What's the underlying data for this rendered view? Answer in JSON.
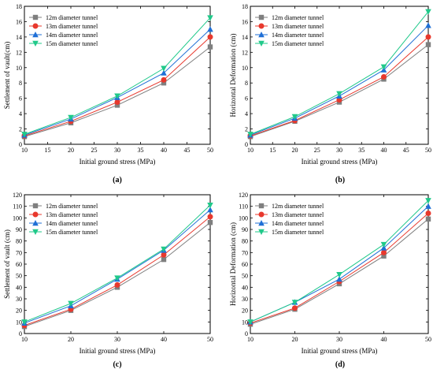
{
  "chart_data": [
    {
      "type": "line",
      "panel_label": "(a)",
      "x": [
        10,
        20,
        30,
        40,
        50
      ],
      "xlabel": "Initial ground stress (MPa)",
      "ylabel": "Settlement of vault(cm)",
      "xlim": [
        10,
        50
      ],
      "ylim": [
        0,
        18
      ],
      "xticks": [
        10,
        15,
        20,
        25,
        30,
        35,
        40,
        45,
        50
      ],
      "yticks": [
        0,
        2,
        4,
        6,
        8,
        10,
        12,
        14,
        16,
        18
      ],
      "grid": false,
      "legend_position": "top-left",
      "series": [
        {
          "name": "12m diameter tunnel",
          "color": "#7f7f7f",
          "marker": "square",
          "values": [
            1.0,
            2.8,
            5.1,
            8.0,
            12.7
          ]
        },
        {
          "name": "13m diameter tunnel",
          "color": "#e8382d",
          "marker": "circle",
          "values": [
            1.1,
            3.0,
            5.5,
            8.4,
            14.0
          ]
        },
        {
          "name": "14m diameter tunnel",
          "color": "#1f6fd6",
          "marker": "triangle-up",
          "values": [
            1.2,
            3.3,
            6.1,
            9.3,
            15.0
          ]
        },
        {
          "name": "15m diameter tunnel",
          "color": "#20c98a",
          "marker": "triangle-down",
          "values": [
            1.3,
            3.5,
            6.3,
            9.9,
            16.5
          ]
        }
      ]
    },
    {
      "type": "line",
      "panel_label": "(b)",
      "x": [
        10,
        20,
        30,
        40,
        50
      ],
      "xlabel": "Initial ground stress (MPa)",
      "ylabel": "Horizontal Deformation (cm)",
      "xlim": [
        10,
        50
      ],
      "ylim": [
        0,
        18
      ],
      "xticks": [
        10,
        15,
        20,
        25,
        30,
        35,
        40,
        45,
        50
      ],
      "yticks": [
        0,
        2,
        4,
        6,
        8,
        10,
        12,
        14,
        16,
        18
      ],
      "grid": false,
      "legend_position": "top-left",
      "series": [
        {
          "name": "12m diameter tunnel",
          "color": "#7f7f7f",
          "marker": "square",
          "values": [
            1.0,
            3.0,
            5.5,
            8.5,
            13.0
          ]
        },
        {
          "name": "13m diameter tunnel",
          "color": "#e8382d",
          "marker": "circle",
          "values": [
            1.1,
            3.1,
            5.8,
            8.8,
            14.0
          ]
        },
        {
          "name": "14m diameter tunnel",
          "color": "#1f6fd6",
          "marker": "triangle-up",
          "values": [
            1.2,
            3.4,
            6.3,
            9.7,
            15.5
          ]
        },
        {
          "name": "15m diameter tunnel",
          "color": "#20c98a",
          "marker": "triangle-down",
          "values": [
            1.3,
            3.6,
            6.6,
            10.1,
            17.3
          ]
        }
      ]
    },
    {
      "type": "line",
      "panel_label": "(c)",
      "x": [
        10,
        20,
        30,
        40,
        50
      ],
      "xlabel": "Initial ground stress (MPa)",
      "ylabel": "Settlement of vault (cm)",
      "xlim": [
        10,
        50
      ],
      "ylim": [
        0,
        120
      ],
      "xticks": [
        10,
        20,
        30,
        40,
        50
      ],
      "yticks": [
        0,
        10,
        20,
        30,
        40,
        50,
        60,
        70,
        80,
        90,
        100,
        110,
        120
      ],
      "grid": false,
      "legend_position": "top-left",
      "series": [
        {
          "name": "12m diameter tunnel",
          "color": "#7f7f7f",
          "marker": "square",
          "values": [
            6,
            20,
            40,
            64,
            96
          ]
        },
        {
          "name": "13m diameter tunnel",
          "color": "#e8382d",
          "marker": "circle",
          "values": [
            7,
            21,
            42,
            68,
            101
          ]
        },
        {
          "name": "14m diameter tunnel",
          "color": "#1f6fd6",
          "marker": "triangle-up",
          "values": [
            9,
            24,
            47,
            72,
            107
          ]
        },
        {
          "name": "15m diameter tunnel",
          "color": "#20c98a",
          "marker": "triangle-down",
          "values": [
            10,
            26,
            48,
            73,
            111
          ]
        }
      ]
    },
    {
      "type": "line",
      "panel_label": "(d)",
      "x": [
        10,
        20,
        30,
        40,
        50
      ],
      "xlabel": "Initial ground stress (MPa)",
      "ylabel": "Horizontal Deformation (cm)",
      "xlim": [
        10,
        50
      ],
      "ylim": [
        0,
        120
      ],
      "xticks": [
        10,
        20,
        30,
        40,
        50
      ],
      "yticks": [
        0,
        10,
        20,
        30,
        40,
        50,
        60,
        70,
        80,
        90,
        100,
        110,
        120
      ],
      "grid": false,
      "legend_position": "top-left",
      "series": [
        {
          "name": "12m diameter tunnel",
          "color": "#7f7f7f",
          "marker": "square",
          "values": [
            8,
            21,
            43,
            67,
            99
          ]
        },
        {
          "name": "13m diameter tunnel",
          "color": "#e8382d",
          "marker": "circle",
          "values": [
            9,
            22,
            45,
            70,
            104
          ]
        },
        {
          "name": "14m diameter tunnel",
          "color": "#1f6fd6",
          "marker": "triangle-up",
          "values": [
            10,
            27,
            47,
            74,
            110
          ]
        },
        {
          "name": "15m diameter tunnel",
          "color": "#20c98a",
          "marker": "triangle-down",
          "values": [
            10,
            27,
            51,
            77,
            115
          ]
        }
      ]
    }
  ]
}
